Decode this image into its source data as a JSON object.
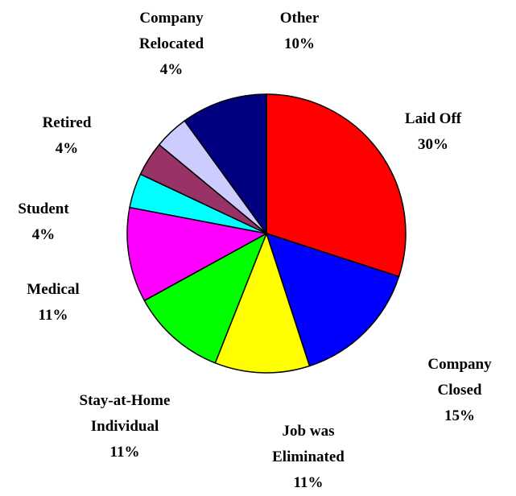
{
  "chart_data": {
    "type": "pie",
    "categories": [
      "Laid Off",
      "Company Closed",
      "Job was Eliminated",
      "Stay-at-Home Individual",
      "Medical",
      "Student",
      "Retired",
      "Company Relocated",
      "Other"
    ],
    "values": [
      30,
      15,
      11,
      11,
      11,
      4,
      4,
      4,
      10
    ],
    "value_labels": [
      "30%",
      "15%",
      "11%",
      "11%",
      "11%",
      "4%",
      "4%",
      "4%",
      "10%"
    ],
    "colors": [
      "#ff0000",
      "#0000ff",
      "#ffff00",
      "#00ff00",
      "#ff00ff",
      "#00ffff",
      "#993366",
      "#ccccff",
      "#000080"
    ]
  }
}
